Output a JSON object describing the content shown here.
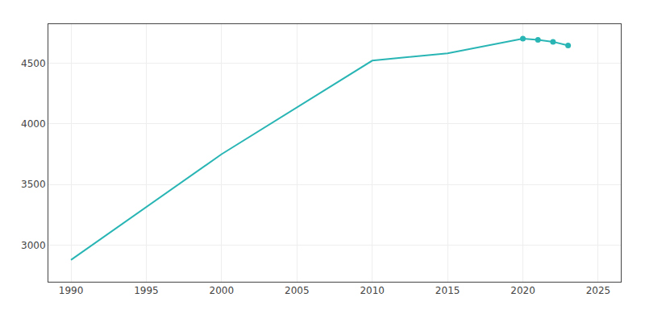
{
  "chart_data": {
    "type": "line",
    "series": [
      {
        "type": "line",
        "color": "#2AB5B5",
        "x": [
          1990,
          2000,
          2010,
          2015,
          2020,
          2021,
          2022,
          2023
        ],
        "values": [
          2880,
          3750,
          4520,
          4580,
          4700,
          4690,
          4675,
          4645
        ]
      },
      {
        "type": "scatter",
        "color": "#2AB5B5",
        "x": [
          2020,
          2021,
          2022,
          2023
        ],
        "values": [
          4700,
          4690,
          4675,
          4645
        ]
      }
    ],
    "xlim": [
      1988.5,
      2026.5
    ],
    "ylim": [
      2700,
      4820
    ],
    "xticks": [
      1990,
      1995,
      2000,
      2005,
      2010,
      2015,
      2020,
      2025
    ],
    "yticks": [
      3000,
      3500,
      4000,
      4500
    ],
    "grid": true
  }
}
